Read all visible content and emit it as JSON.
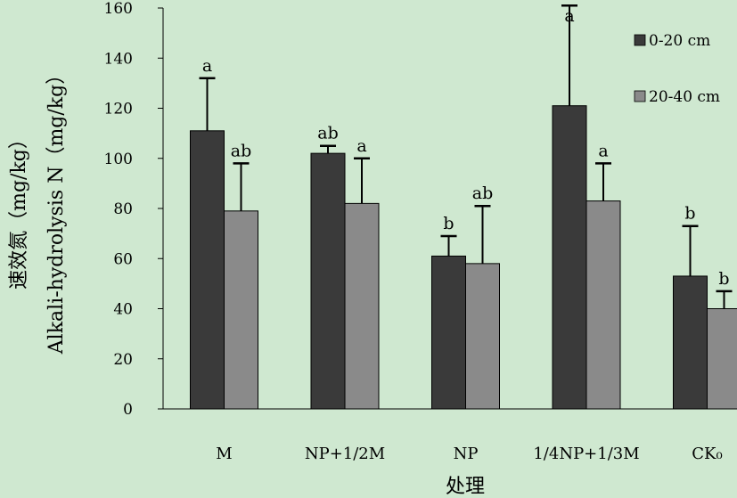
{
  "chart_data": {
    "type": "bar",
    "categories": [
      "M",
      "NP+1/2M",
      "NP",
      "1/4NP+1/3M",
      "CK₀"
    ],
    "series": [
      {
        "name": "0-20 cm",
        "color": "#3a3a3a",
        "values": [
          111,
          102,
          61,
          121,
          53
        ],
        "errors": [
          21,
          3,
          8,
          40,
          20
        ],
        "labels": [
          "a",
          "ab",
          "b",
          "a",
          "b"
        ]
      },
      {
        "name": "20-40 cm",
        "color": "#8a8a8a",
        "values": [
          79,
          82,
          58,
          83,
          40
        ],
        "errors": [
          19,
          18,
          23,
          15,
          7
        ],
        "labels": [
          "ab",
          "a",
          "ab",
          "a",
          "b"
        ]
      }
    ],
    "ylim": [
      0,
      160
    ],
    "yticks": [
      0,
      20,
      40,
      60,
      80,
      100,
      120,
      140,
      160
    ],
    "ylabel_cn": "速效氮（mg/kg）",
    "ylabel_en": "Alkali-hydrolysis N（mg/kg）",
    "xlabel": "处理",
    "legend_position": "top-right",
    "grid": false
  }
}
